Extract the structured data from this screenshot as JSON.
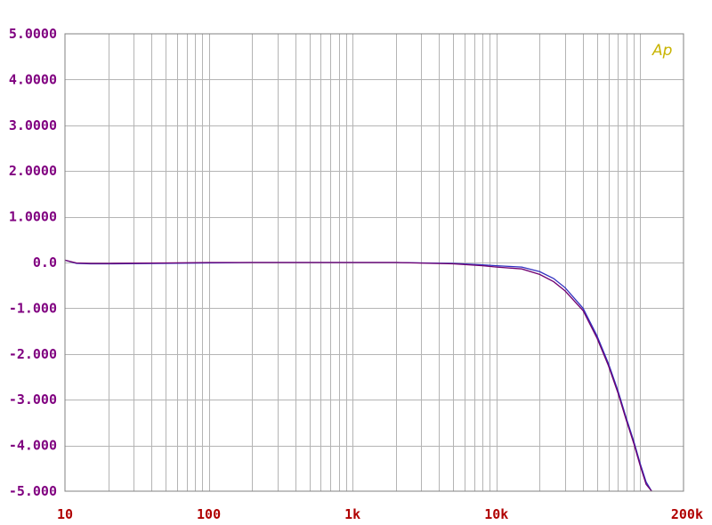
{
  "chart_data": {
    "type": "line",
    "title": "",
    "xlabel": "",
    "ylabel": "",
    "x_scale": "log",
    "xlim": [
      10,
      200000
    ],
    "ylim": [
      -5,
      5
    ],
    "grid": true,
    "x_tick_values": [
      10,
      100,
      1000,
      10000,
      200000
    ],
    "x_tick_labels": [
      "10",
      "100",
      "1k",
      "10k",
      "200k"
    ],
    "y_tick_values": [
      5,
      4,
      3,
      2,
      1,
      0,
      -1,
      -2,
      -3,
      -4,
      -5
    ],
    "y_tick_labels": [
      "5.0000",
      "4.0000",
      "3.0000",
      "2.0000",
      "1.0000",
      "0.0",
      "-1.000",
      "-2.000",
      "-3.000",
      "-4.000",
      "-5.000"
    ],
    "logo_text": "Ap",
    "series": [
      {
        "color": "#3030c0",
        "x": [
          10,
          12,
          15,
          20,
          50,
          100,
          200,
          500,
          1000,
          2000,
          5000,
          8000,
          10000,
          15000,
          20000,
          25000,
          30000,
          40000,
          50000,
          60000,
          70000,
          80000,
          90000,
          100000,
          110000,
          120000
        ],
        "y": [
          0.05,
          -0.02,
          -0.03,
          -0.03,
          -0.02,
          -0.01,
          0.0,
          0.0,
          0.0,
          0.0,
          -0.02,
          -0.05,
          -0.07,
          -0.1,
          -0.2,
          -0.35,
          -0.55,
          -1.0,
          -1.6,
          -2.2,
          -2.8,
          -3.4,
          -3.9,
          -4.4,
          -4.8,
          -5.0
        ]
      },
      {
        "color": "#700070",
        "x": [
          10,
          12,
          15,
          20,
          50,
          100,
          200,
          500,
          1000,
          2000,
          5000,
          8000,
          10000,
          15000,
          20000,
          25000,
          30000,
          40000,
          50000,
          60000,
          70000,
          80000,
          90000,
          100000,
          110000,
          120000
        ],
        "y": [
          0.05,
          -0.01,
          -0.02,
          -0.02,
          -0.01,
          0.0,
          0.0,
          0.0,
          0.0,
          0.0,
          -0.03,
          -0.07,
          -0.1,
          -0.14,
          -0.26,
          -0.42,
          -0.62,
          -1.05,
          -1.65,
          -2.25,
          -2.85,
          -3.45,
          -3.95,
          -4.45,
          -4.85,
          -5.0
        ]
      }
    ]
  }
}
